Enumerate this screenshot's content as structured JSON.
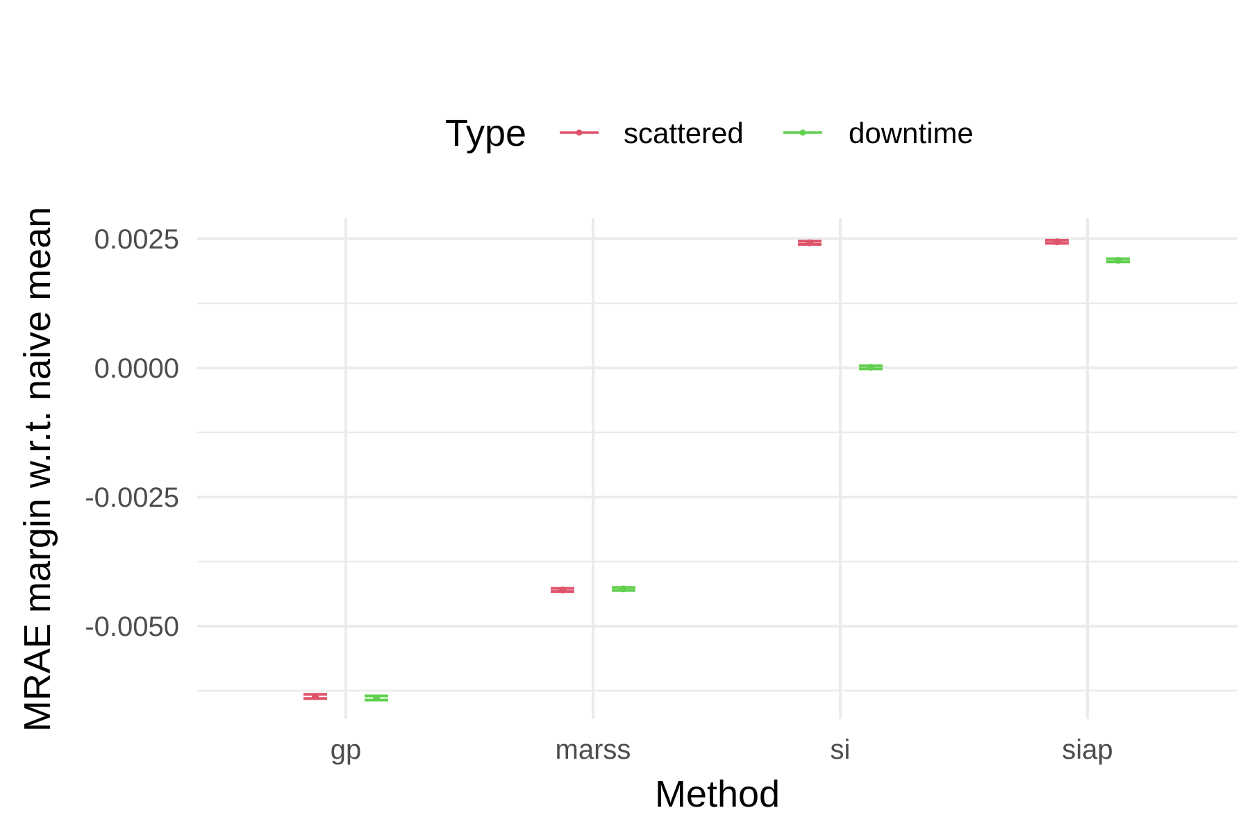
{
  "chart_data": {
    "type": "errorbar",
    "title": "",
    "xlabel": "Method",
    "ylabel": "MRAE margin w.r.t. naive mean",
    "categories": [
      "gp",
      "marss",
      "si",
      "siap"
    ],
    "ylim": [
      -0.0068,
      0.0029
    ],
    "y_major_ticks": [
      0.0025,
      0.0,
      -0.0025,
      -0.005
    ],
    "y_tick_labels": [
      "0.0025",
      "0.0000",
      "-0.0025",
      "-0.0050"
    ],
    "y_minor_ticks": [
      0.00125,
      -0.00125,
      -0.00375,
      -0.00625
    ],
    "grid": true,
    "legend": {
      "title": "Type",
      "position": "top",
      "entries": [
        "scattered",
        "downtime"
      ]
    },
    "series": [
      {
        "name": "scattered",
        "color": "#df536b",
        "values": [
          -0.00636,
          -0.0043,
          0.00242,
          0.00244
        ],
        "lower": [
          -0.0064,
          -0.00433,
          0.00239,
          0.00241
        ],
        "upper": [
          -0.00632,
          -0.00427,
          0.00245,
          0.00247
        ]
      },
      {
        "name": "downtime",
        "color": "#61d04f",
        "values": [
          -0.00639,
          -0.00428,
          1e-05,
          0.00208
        ],
        "lower": [
          -0.00643,
          -0.00431,
          -2e-05,
          0.00205
        ],
        "upper": [
          -0.00635,
          -0.00425,
          4e-05,
          0.00211
        ]
      }
    ]
  }
}
